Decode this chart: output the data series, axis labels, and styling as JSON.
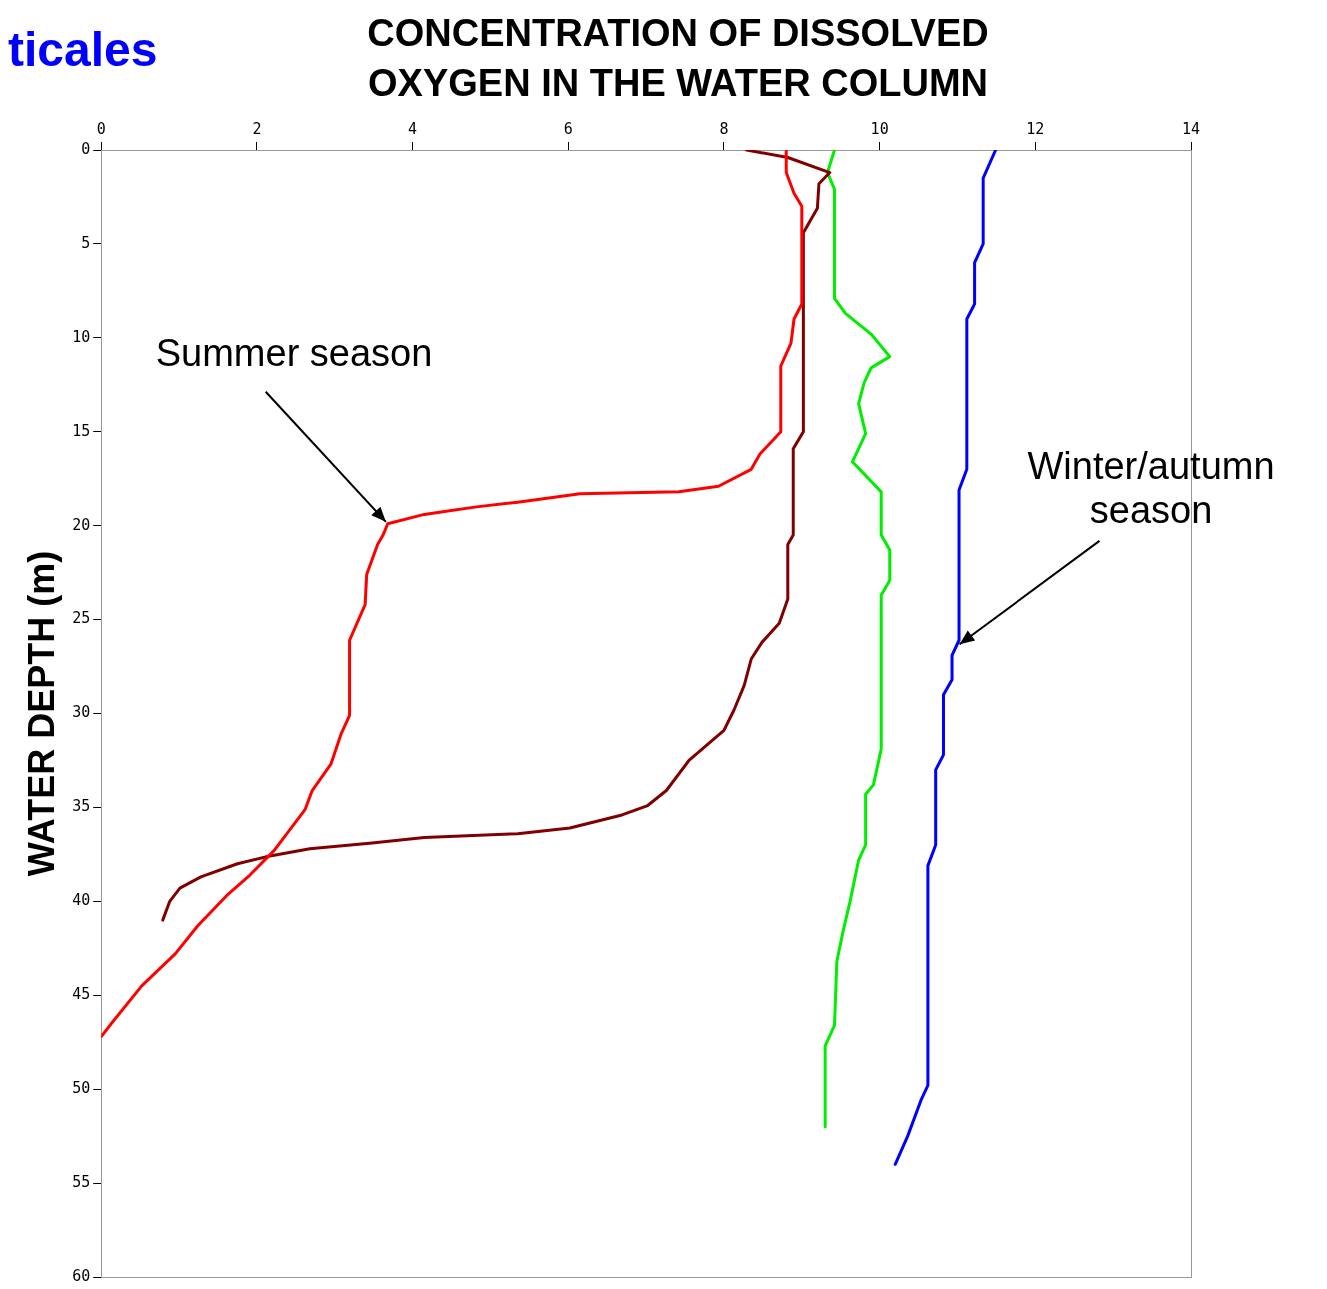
{
  "chart_data": {
    "type": "line",
    "title": "CONCENTRATION OF DISSOLVED OXYGEN IN THE WATER COLUMN",
    "ylabel": "WATER DEPTH (m)",
    "xlim": [
      0,
      14
    ],
    "xticks": [
      0,
      2,
      4,
      6,
      8,
      10,
      12,
      14
    ],
    "ylim": [
      60,
      0
    ],
    "yticks": [
      0,
      5,
      10,
      15,
      20,
      25,
      30,
      35,
      40,
      45,
      50,
      55,
      60
    ],
    "grid": false,
    "legend": false,
    "marker": "none",
    "line_style": "solid",
    "annotations": [
      "ticales",
      {
        "text": "Summer season",
        "x": 3.68,
        "y": 19.9
      },
      {
        "text": "Winter/autumn season",
        "x": 11.0,
        "y": 26.4
      }
    ],
    "series": [
      {
        "color": "#ff0000",
        "x": [
          8.8,
          8.8,
          8.9,
          9.0,
          9.0,
          8.9,
          8.86,
          8.73,
          8.73,
          8.46,
          8.35,
          7.93,
          7.42,
          6.15,
          5.35,
          4.82,
          4.15,
          3.68,
          3.62,
          3.55,
          3.41,
          3.39,
          3.19,
          3.19,
          3.08,
          2.95,
          2.71,
          2.62,
          2.22,
          1.91,
          1.61,
          1.24,
          0.95,
          0.52,
          0.15,
          0
        ],
        "values": [
          0,
          1.2,
          2.3,
          3,
          8.2,
          9,
          10.3,
          11.5,
          15,
          16.2,
          17,
          17.9,
          18.2,
          18.3,
          18.75,
          19,
          19.4,
          19.9,
          20.5,
          21,
          22.6,
          24.2,
          26.1,
          30.1,
          31.1,
          32.7,
          34.1,
          35.1,
          37.3,
          38.6,
          39.7,
          41.3,
          42.8,
          44.5,
          46.4,
          47.2
        ]
      },
      {
        "color": "#800000",
        "x": [
          8.29,
          8.82,
          9.36,
          9.22,
          9.2,
          9.02,
          9.02,
          8.89,
          8.89,
          8.82,
          8.82,
          8.71,
          8.49,
          8.35,
          8.26,
          8.13,
          8.0,
          7.55,
          7.26,
          7.02,
          6.69,
          6.02,
          5.35,
          4.15,
          3.48,
          2.68,
          2.15,
          1.75,
          1.28,
          1.01,
          0.88,
          0.79
        ],
        "values": [
          0,
          0.4,
          1.2,
          1.8,
          3.1,
          4.4,
          15,
          15.9,
          20.5,
          21,
          23.9,
          25.2,
          26.2,
          27.1,
          28.5,
          29.8,
          30.9,
          32.5,
          34.1,
          34.9,
          35.4,
          36.1,
          36.4,
          36.6,
          36.9,
          37.2,
          37.6,
          38,
          38.7,
          39.3,
          40,
          41
        ]
      },
      {
        "color": "#00ee00",
        "x": [
          9.42,
          9.33,
          9.42,
          9.42,
          9.56,
          9.89,
          10.13,
          9.89,
          9.8,
          9.73,
          9.82,
          9.65,
          10.02,
          10.02,
          10.13,
          10.13,
          10.02,
          10.02,
          9.92,
          9.82,
          9.82,
          9.73,
          9.62,
          9.53,
          9.45,
          9.42,
          9.3,
          9.3
        ],
        "values": [
          0,
          1.2,
          2.1,
          7.9,
          8.7,
          9.8,
          11,
          11.6,
          12.4,
          13.5,
          15.1,
          16.6,
          18.2,
          20.5,
          21.3,
          22.9,
          23.7,
          31.9,
          33.8,
          34.3,
          37,
          37.8,
          40,
          41.6,
          43.2,
          46.6,
          47.7,
          52
        ]
      },
      {
        "color": "#0000ff",
        "x": [
          11.49,
          11.33,
          11.33,
          11.22,
          11.22,
          11.12,
          11.12,
          11.02,
          11.02,
          10.93,
          10.93,
          10.82,
          10.82,
          10.72,
          10.72,
          10.62,
          10.62,
          10.53,
          10.36,
          10.2
        ],
        "values": [
          0,
          1.5,
          5,
          6,
          8.2,
          9,
          17,
          18.1,
          26.1,
          26.9,
          28.2,
          29,
          32.2,
          33,
          37,
          38.1,
          49.8,
          50.6,
          52.5,
          54
        ]
      }
    ]
  }
}
